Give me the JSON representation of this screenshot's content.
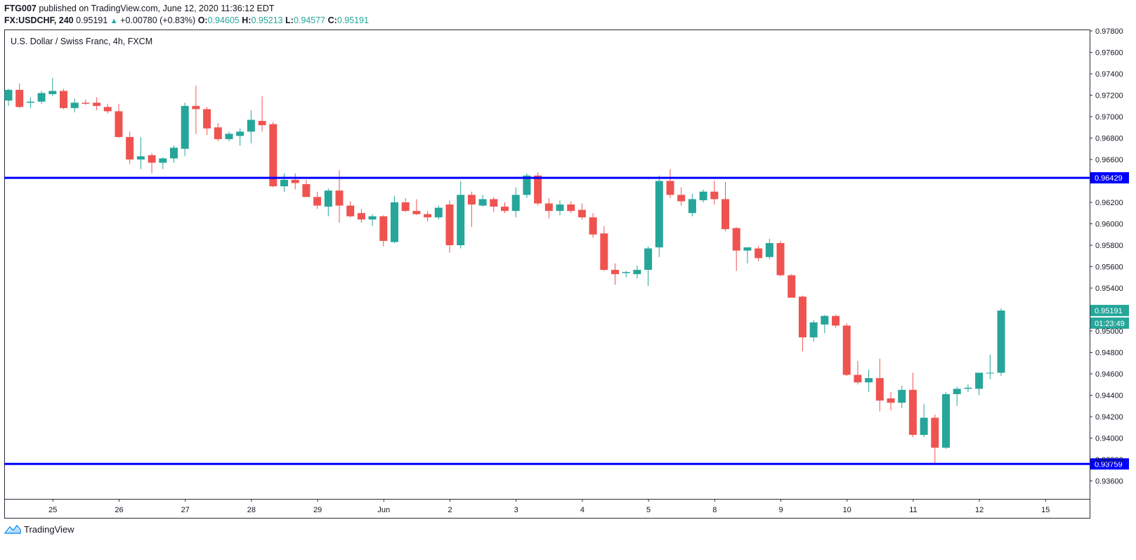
{
  "header": {
    "publisher": "FTG007",
    "published_text": "published on TradingView.com, June 12, 2020 11:36:12 EDT",
    "symbol": "FX:USDCHF, 240",
    "last": "0.95191",
    "change": "+0.00780 (+0.83%)",
    "o_label": "O:",
    "o": "0.94605",
    "h_label": "H:",
    "h": "0.95213",
    "l_label": "L:",
    "l": "0.94577",
    "c_label": "C:",
    "c": "0.95191"
  },
  "footer": {
    "brand": "TradingView"
  },
  "colors": {
    "up": "#26a69a",
    "down": "#ef5350",
    "level": "#0000ff",
    "text": "#131722"
  },
  "chart_data": {
    "type": "candlestick",
    "title": "U.S. Dollar / Swiss Franc, 4h, FXCM",
    "ylim": [
      0.935,
      0.979
    ],
    "y_ticks": [
      "0.97800",
      "0.97600",
      "0.97400",
      "0.97200",
      "0.97000",
      "0.96800",
      "0.96600",
      "0.96200",
      "0.96000",
      "0.95800",
      "0.95600",
      "0.95400",
      "0.95000",
      "0.94800",
      "0.94600",
      "0.94400",
      "0.94200",
      "0.94000",
      "0.93800",
      "0.93600"
    ],
    "x_ticks": [
      {
        "label": "25",
        "bar": 4
      },
      {
        "label": "26",
        "bar": 10
      },
      {
        "label": "27",
        "bar": 16
      },
      {
        "label": "28",
        "bar": 22
      },
      {
        "label": "29",
        "bar": 28
      },
      {
        "label": "Jun",
        "bar": 34
      },
      {
        "label": "2",
        "bar": 40
      },
      {
        "label": "3",
        "bar": 46
      },
      {
        "label": "4",
        "bar": 52
      },
      {
        "label": "5",
        "bar": 58
      },
      {
        "label": "8",
        "bar": 64
      },
      {
        "label": "9",
        "bar": 70
      },
      {
        "label": "10",
        "bar": 76
      },
      {
        "label": "11",
        "bar": 82
      },
      {
        "label": "12",
        "bar": 88
      },
      {
        "label": "15",
        "bar": 94
      }
    ],
    "levels": [
      {
        "value": 0.96429,
        "label": "0.96429"
      },
      {
        "value": 0.93759,
        "label": "0.93759"
      }
    ],
    "last_price": {
      "value": 0.95191,
      "label": "0.95191",
      "countdown": "01:23:49"
    },
    "candles": [
      [
        0.9715,
        0.9726,
        0.971,
        0.9725
      ],
      [
        0.9725,
        0.9731,
        0.9708,
        0.9709
      ],
      [
        0.9713,
        0.9718,
        0.9708,
        0.9714
      ],
      [
        0.9714,
        0.9724,
        0.9712,
        0.9722
      ],
      [
        0.9721,
        0.9736,
        0.9719,
        0.9724
      ],
      [
        0.9724,
        0.9726,
        0.9707,
        0.9708
      ],
      [
        0.9708,
        0.9717,
        0.9704,
        0.9713
      ],
      [
        0.9713,
        0.9716,
        0.9711,
        0.9712
      ],
      [
        0.9713,
        0.9718,
        0.9706,
        0.971
      ],
      [
        0.9709,
        0.9712,
        0.9703,
        0.9705
      ],
      [
        0.9705,
        0.9712,
        0.968,
        0.9681
      ],
      [
        0.9681,
        0.9686,
        0.9656,
        0.966
      ],
      [
        0.966,
        0.9681,
        0.9651,
        0.9663
      ],
      [
        0.9664,
        0.9666,
        0.9647,
        0.9657
      ],
      [
        0.9657,
        0.9662,
        0.9651,
        0.9661
      ],
      [
        0.9661,
        0.9673,
        0.9657,
        0.9671
      ],
      [
        0.967,
        0.9713,
        0.9663,
        0.971
      ],
      [
        0.971,
        0.9729,
        0.9684,
        0.9707
      ],
      [
        0.9707,
        0.9709,
        0.9683,
        0.9689
      ],
      [
        0.969,
        0.9694,
        0.9677,
        0.9679
      ],
      [
        0.9679,
        0.9686,
        0.9677,
        0.9684
      ],
      [
        0.9682,
        0.9689,
        0.9673,
        0.9686
      ],
      [
        0.9686,
        0.9706,
        0.9675,
        0.9697
      ],
      [
        0.9696,
        0.9719,
        0.9686,
        0.9692
      ],
      [
        0.9693,
        0.9695,
        0.9634,
        0.9635
      ],
      [
        0.9635,
        0.9647,
        0.963,
        0.9641
      ],
      [
        0.9641,
        0.9647,
        0.9632,
        0.9638
      ],
      [
        0.9637,
        0.9641,
        0.9625,
        0.9625
      ],
      [
        0.9625,
        0.963,
        0.9614,
        0.9617
      ],
      [
        0.9616,
        0.9633,
        0.9607,
        0.9631
      ],
      [
        0.9631,
        0.965,
        0.9601,
        0.9617
      ],
      [
        0.9617,
        0.9621,
        0.9606,
        0.9607
      ],
      [
        0.961,
        0.9614,
        0.9601,
        0.9604
      ],
      [
        0.9604,
        0.9609,
        0.9598,
        0.9607
      ],
      [
        0.9607,
        0.9608,
        0.9579,
        0.9584
      ],
      [
        0.9583,
        0.9626,
        0.9582,
        0.962
      ],
      [
        0.962,
        0.9624,
        0.9611,
        0.9612
      ],
      [
        0.9612,
        0.9623,
        0.9608,
        0.9609
      ],
      [
        0.9609,
        0.9612,
        0.9602,
        0.9606
      ],
      [
        0.9606,
        0.9617,
        0.9604,
        0.9615
      ],
      [
        0.9618,
        0.9622,
        0.9573,
        0.958
      ],
      [
        0.958,
        0.964,
        0.9577,
        0.9627
      ],
      [
        0.9627,
        0.963,
        0.9597,
        0.9618
      ],
      [
        0.9617,
        0.9627,
        0.9616,
        0.9623
      ],
      [
        0.9623,
        0.9625,
        0.9611,
        0.9616
      ],
      [
        0.9616,
        0.962,
        0.961,
        0.9612
      ],
      [
        0.9612,
        0.9634,
        0.9606,
        0.9627
      ],
      [
        0.9627,
        0.9647,
        0.9624,
        0.9645
      ],
      [
        0.9645,
        0.9648,
        0.9617,
        0.9619
      ],
      [
        0.9619,
        0.9624,
        0.9605,
        0.9612
      ],
      [
        0.9612,
        0.9622,
        0.9608,
        0.9618
      ],
      [
        0.9618,
        0.9621,
        0.961,
        0.9612
      ],
      [
        0.9613,
        0.9619,
        0.9604,
        0.9606
      ],
      [
        0.9606,
        0.961,
        0.9587,
        0.959
      ],
      [
        0.9591,
        0.9598,
        0.9556,
        0.9557
      ],
      [
        0.9557,
        0.9563,
        0.9543,
        0.9553
      ],
      [
        0.9554,
        0.9556,
        0.955,
        0.9555
      ],
      [
        0.9553,
        0.9561,
        0.9549,
        0.9557
      ],
      [
        0.9557,
        0.9579,
        0.9542,
        0.9577
      ],
      [
        0.9578,
        0.9645,
        0.9569,
        0.964
      ],
      [
        0.964,
        0.9651,
        0.9624,
        0.9627
      ],
      [
        0.9627,
        0.9634,
        0.9617,
        0.9621
      ],
      [
        0.961,
        0.9628,
        0.9607,
        0.9623
      ],
      [
        0.9622,
        0.9632,
        0.962,
        0.963
      ],
      [
        0.963,
        0.964,
        0.9618,
        0.9623
      ],
      [
        0.9623,
        0.9639,
        0.9593,
        0.9595
      ],
      [
        0.9596,
        0.9597,
        0.9556,
        0.9575
      ],
      [
        0.9575,
        0.9578,
        0.9563,
        0.9578
      ],
      [
        0.9577,
        0.9579,
        0.9565,
        0.9568
      ],
      [
        0.9569,
        0.9586,
        0.9567,
        0.9582
      ],
      [
        0.9582,
        0.9584,
        0.9551,
        0.9552
      ],
      [
        0.9552,
        0.9553,
        0.9532,
        0.9531
      ],
      [
        0.9532,
        0.9533,
        0.9481,
        0.9494
      ],
      [
        0.9494,
        0.951,
        0.949,
        0.9508
      ],
      [
        0.9506,
        0.9515,
        0.9498,
        0.9514
      ],
      [
        0.9514,
        0.9515,
        0.9503,
        0.9505
      ],
      [
        0.9505,
        0.9507,
        0.9458,
        0.9459
      ],
      [
        0.9459,
        0.9472,
        0.945,
        0.9452
      ],
      [
        0.9452,
        0.9464,
        0.9443,
        0.9456
      ],
      [
        0.9456,
        0.9474,
        0.9425,
        0.9435
      ],
      [
        0.9437,
        0.9443,
        0.9426,
        0.9433
      ],
      [
        0.9433,
        0.9449,
        0.9428,
        0.9445
      ],
      [
        0.9445,
        0.9461,
        0.9401,
        0.9403
      ],
      [
        0.9403,
        0.9432,
        0.9401,
        0.9419
      ],
      [
        0.9419,
        0.9422,
        0.9376,
        0.9391
      ],
      [
        0.9391,
        0.9443,
        0.939,
        0.9441
      ],
      [
        0.9441,
        0.9448,
        0.943,
        0.9446
      ],
      [
        0.9446,
        0.945,
        0.9443,
        0.9447
      ],
      [
        0.9446,
        0.9461,
        0.944,
        0.9461
      ],
      [
        0.9461,
        0.9478,
        0.9455,
        0.9461
      ],
      [
        0.9461,
        0.9521,
        0.9458,
        0.9519
      ]
    ]
  }
}
